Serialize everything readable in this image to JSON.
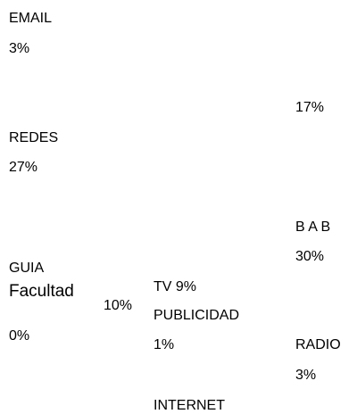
{
  "labels": [
    {
      "text": "EMAIL"
    },
    {
      "text": "3%"
    },
    {
      "text": "REDES"
    },
    {
      "text": "27%"
    },
    {
      "text": "17%"
    },
    {
      "text": "B A B"
    },
    {
      "text": "30%"
    },
    {
      "text": "GUIA"
    },
    {
      "text": "Facultad"
    },
    {
      "text": "10%"
    },
    {
      "text": "0%"
    },
    {
      "text": "TV 9%"
    },
    {
      "text": "PUBLICIDAD"
    },
    {
      "text": "1%"
    },
    {
      "text": "RADIO"
    },
    {
      "text": "3%"
    },
    {
      "text": "INTERNET"
    }
  ]
}
